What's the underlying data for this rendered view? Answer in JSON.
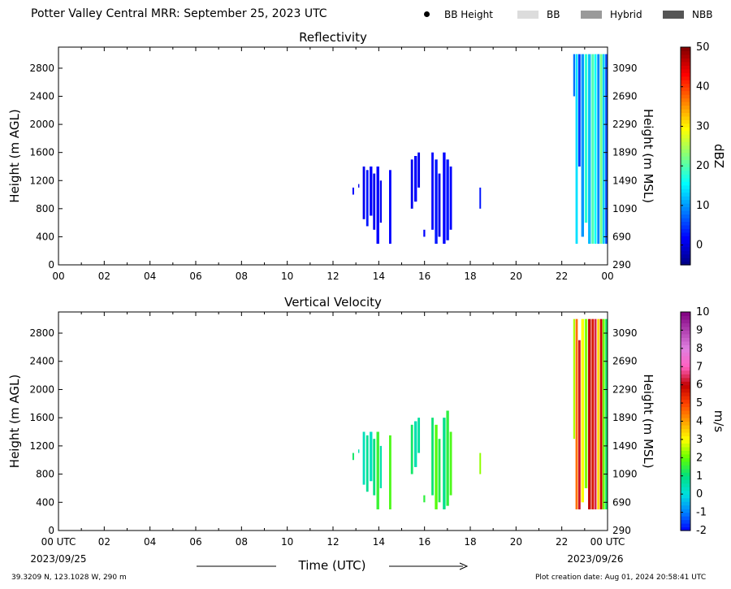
{
  "header": {
    "title": "Potter Valley Central MRR:  September 25, 2023 UTC"
  },
  "legend": {
    "items": [
      {
        "label": "BB Height",
        "kind": "dot",
        "color": "#000000"
      },
      {
        "label": "BB",
        "kind": "swatch",
        "color": "#dcdcdc"
      },
      {
        "label": "Hybrid",
        "kind": "swatch",
        "color": "#9a9a9a"
      },
      {
        "label": "NBB",
        "kind": "swatch",
        "color": "#555555"
      }
    ]
  },
  "footer": {
    "location": "39.3209 N, 123.1028 W, 290 m",
    "created": "Plot creation date: Aug 01, 2024 20:58:41 UTC",
    "xlabel": "Time (UTC)",
    "start_date": "2023/09/25",
    "end_date": "2023/09/26"
  },
  "chart_data": [
    {
      "type": "heatmap",
      "title": "Reflectivity",
      "ylabel": "Height (m AGL)",
      "ylabel_right": "Height (m MSL)",
      "colorbar_label": "dBZ",
      "x_ticks": [
        "00",
        "02",
        "04",
        "06",
        "08",
        "10",
        "12",
        "14",
        "16",
        "18",
        "20",
        "22",
        "00"
      ],
      "xlim": [
        0,
        24
      ],
      "ylim": [
        0,
        3100
      ],
      "y_ticks": [
        0,
        400,
        800,
        1200,
        1600,
        2000,
        2400,
        2800
      ],
      "y_ticks_right": [
        290,
        690,
        1090,
        1490,
        1890,
        2290,
        2690,
        3090
      ],
      "clim": [
        -5,
        50
      ],
      "colorbar_ticks": [
        0,
        10,
        20,
        30,
        40,
        50
      ],
      "colormap": [
        "#00007f",
        "#0000ff",
        "#007fff",
        "#00ffff",
        "#7fff7f",
        "#ffff00",
        "#ff7f00",
        "#ff0000",
        "#7f0000"
      ],
      "cells": [
        {
          "t": 12.85,
          "dt": 0.07,
          "y0": 1000,
          "y1": 1100,
          "v": 2
        },
        {
          "t": 13.1,
          "dt": 0.05,
          "y0": 1100,
          "y1": 1150,
          "v": 1
        },
        {
          "t": 13.3,
          "dt": 0.1,
          "y0": 650,
          "y1": 1400,
          "v": 1
        },
        {
          "t": 13.45,
          "dt": 0.1,
          "y0": 550,
          "y1": 1350,
          "v": 3
        },
        {
          "t": 13.6,
          "dt": 0.12,
          "y0": 700,
          "y1": 1400,
          "v": 2
        },
        {
          "t": 13.75,
          "dt": 0.1,
          "y0": 500,
          "y1": 1300,
          "v": 1
        },
        {
          "t": 13.9,
          "dt": 0.12,
          "y0": 300,
          "y1": 1400,
          "v": 2
        },
        {
          "t": 14.05,
          "dt": 0.08,
          "y0": 600,
          "y1": 1200,
          "v": 1
        },
        {
          "t": 14.45,
          "dt": 0.1,
          "y0": 300,
          "y1": 1350,
          "v": 2
        },
        {
          "t": 15.4,
          "dt": 0.1,
          "y0": 800,
          "y1": 1500,
          "v": 1
        },
        {
          "t": 15.55,
          "dt": 0.12,
          "y0": 900,
          "y1": 1550,
          "v": 2
        },
        {
          "t": 15.7,
          "dt": 0.1,
          "y0": 1100,
          "y1": 1600,
          "v": 1
        },
        {
          "t": 15.95,
          "dt": 0.08,
          "y0": 400,
          "y1": 500,
          "v": 2
        },
        {
          "t": 16.3,
          "dt": 0.1,
          "y0": 500,
          "y1": 1600,
          "v": 2
        },
        {
          "t": 16.45,
          "dt": 0.12,
          "y0": 300,
          "y1": 1500,
          "v": 3
        },
        {
          "t": 16.6,
          "dt": 0.1,
          "y0": 400,
          "y1": 1300,
          "v": 1
        },
        {
          "t": 16.8,
          "dt": 0.12,
          "y0": 300,
          "y1": 1600,
          "v": 2
        },
        {
          "t": 16.95,
          "dt": 0.12,
          "y0": 350,
          "y1": 1500,
          "v": 3
        },
        {
          "t": 17.1,
          "dt": 0.1,
          "y0": 500,
          "y1": 1400,
          "v": 2
        },
        {
          "t": 18.4,
          "dt": 0.07,
          "y0": 800,
          "y1": 1100,
          "v": 3
        },
        {
          "t": 22.5,
          "dt": 0.08,
          "y0": 2400,
          "y1": 3000,
          "v": 8
        },
        {
          "t": 22.6,
          "dt": 0.1,
          "y0": 300,
          "y1": 3000,
          "v": 14
        },
        {
          "t": 22.72,
          "dt": 0.1,
          "y0": 1400,
          "y1": 3000,
          "v": 5
        },
        {
          "t": 22.85,
          "dt": 0.12,
          "y0": 400,
          "y1": 3000,
          "v": 10
        },
        {
          "t": 23.0,
          "dt": 0.12,
          "y0": 600,
          "y1": 3000,
          "v": 18
        },
        {
          "t": 23.15,
          "dt": 0.12,
          "y0": 300,
          "y1": 3000,
          "v": 12
        },
        {
          "t": 23.3,
          "dt": 0.1,
          "y0": 300,
          "y1": 3000,
          "v": 20
        },
        {
          "t": 23.42,
          "dt": 0.1,
          "y0": 300,
          "y1": 3000,
          "v": 16
        },
        {
          "t": 23.55,
          "dt": 0.1,
          "y0": 300,
          "y1": 3000,
          "v": 9
        },
        {
          "t": 23.67,
          "dt": 0.1,
          "y0": 300,
          "y1": 3000,
          "v": 22
        },
        {
          "t": 23.78,
          "dt": 0.1,
          "y0": 300,
          "y1": 3000,
          "v": 13
        },
        {
          "t": 23.9,
          "dt": 0.1,
          "y0": 300,
          "y1": 3000,
          "v": 6
        }
      ]
    },
    {
      "type": "heatmap",
      "title": "Vertical Velocity",
      "ylabel": "Height (m AGL)",
      "ylabel_right": "Height (m MSL)",
      "colorbar_label": "m/s",
      "x_ticks": [
        "00 UTC",
        "02",
        "04",
        "06",
        "08",
        "10",
        "12",
        "14",
        "16",
        "18",
        "20",
        "22",
        "00 UTC"
      ],
      "xlim": [
        0,
        24
      ],
      "ylim": [
        0,
        3100
      ],
      "y_ticks": [
        0,
        400,
        800,
        1200,
        1600,
        2000,
        2400,
        2800
      ],
      "y_ticks_right": [
        290,
        690,
        1090,
        1490,
        1890,
        2290,
        2690,
        3090
      ],
      "clim": [
        -2,
        10
      ],
      "colorbar_ticks": [
        -2,
        -1,
        0,
        1,
        2,
        3,
        4,
        5,
        6,
        7,
        8,
        9,
        10
      ],
      "colormap": [
        "#0000ff",
        "#0080ff",
        "#00e0e0",
        "#00e080",
        "#60ff00",
        "#ffff00",
        "#ffa000",
        "#ff4000",
        "#c00000",
        "#ff60c0",
        "#e080e0",
        "#b040b0",
        "#800080"
      ],
      "cells": [
        {
          "t": 12.85,
          "dt": 0.07,
          "y0": 1000,
          "y1": 1100,
          "v": 1.2
        },
        {
          "t": 13.1,
          "dt": 0.05,
          "y0": 1100,
          "y1": 1150,
          "v": 0.5
        },
        {
          "t": 13.3,
          "dt": 0.1,
          "y0": 650,
          "y1": 1400,
          "v": 0.4
        },
        {
          "t": 13.45,
          "dt": 0.1,
          "y0": 550,
          "y1": 1350,
          "v": 0.8
        },
        {
          "t": 13.6,
          "dt": 0.12,
          "y0": 700,
          "y1": 1400,
          "v": 0.3
        },
        {
          "t": 13.75,
          "dt": 0.1,
          "y0": 500,
          "y1": 1300,
          "v": 1.0
        },
        {
          "t": 13.9,
          "dt": 0.12,
          "y0": 300,
          "y1": 1400,
          "v": 1.6
        },
        {
          "t": 14.05,
          "dt": 0.08,
          "y0": 600,
          "y1": 1200,
          "v": 0.6
        },
        {
          "t": 14.45,
          "dt": 0.1,
          "y0": 300,
          "y1": 1350,
          "v": 1.8
        },
        {
          "t": 15.4,
          "dt": 0.1,
          "y0": 800,
          "y1": 1500,
          "v": 1.2
        },
        {
          "t": 15.55,
          "dt": 0.12,
          "y0": 900,
          "y1": 1550,
          "v": 0.5
        },
        {
          "t": 15.7,
          "dt": 0.1,
          "y0": 1100,
          "y1": 1600,
          "v": 0.7
        },
        {
          "t": 15.95,
          "dt": 0.08,
          "y0": 400,
          "y1": 500,
          "v": 1.5
        },
        {
          "t": 16.3,
          "dt": 0.1,
          "y0": 500,
          "y1": 1600,
          "v": 1.1
        },
        {
          "t": 16.45,
          "dt": 0.12,
          "y0": 300,
          "y1": 1500,
          "v": 1.9
        },
        {
          "t": 16.6,
          "dt": 0.1,
          "y0": 400,
          "y1": 1300,
          "v": 1.4
        },
        {
          "t": 16.8,
          "dt": 0.12,
          "y0": 300,
          "y1": 1600,
          "v": 0.9
        },
        {
          "t": 16.95,
          "dt": 0.12,
          "y0": 350,
          "y1": 1700,
          "v": 1.5
        },
        {
          "t": 17.1,
          "dt": 0.1,
          "y0": 500,
          "y1": 1400,
          "v": 1.8
        },
        {
          "t": 18.4,
          "dt": 0.07,
          "y0": 800,
          "y1": 1100,
          "v": 2.3
        },
        {
          "t": 22.5,
          "dt": 0.08,
          "y0": 1300,
          "y1": 3000,
          "v": 2.5
        },
        {
          "t": 22.6,
          "dt": 0.1,
          "y0": 300,
          "y1": 3000,
          "v": 4.5
        },
        {
          "t": 22.72,
          "dt": 0.1,
          "y0": 300,
          "y1": 2700,
          "v": 6.2
        },
        {
          "t": 22.85,
          "dt": 0.12,
          "y0": 400,
          "y1": 3000,
          "v": 3.0
        },
        {
          "t": 23.0,
          "dt": 0.12,
          "y0": 600,
          "y1": 3000,
          "v": 2.2
        },
        {
          "t": 23.15,
          "dt": 0.12,
          "y0": 300,
          "y1": 3000,
          "v": 6.0
        },
        {
          "t": 23.3,
          "dt": 0.1,
          "y0": 300,
          "y1": 3000,
          "v": 5.6
        },
        {
          "t": 23.42,
          "dt": 0.1,
          "y0": 300,
          "y1": 3000,
          "v": 6.4
        },
        {
          "t": 23.55,
          "dt": 0.1,
          "y0": 300,
          "y1": 3000,
          "v": 3.4
        },
        {
          "t": 23.67,
          "dt": 0.1,
          "y0": 300,
          "y1": 3000,
          "v": 5.9
        },
        {
          "t": 23.78,
          "dt": 0.1,
          "y0": 300,
          "y1": 3000,
          "v": 2.1
        },
        {
          "t": 23.9,
          "dt": 0.1,
          "y0": 300,
          "y1": 3000,
          "v": 1.2
        }
      ]
    }
  ]
}
